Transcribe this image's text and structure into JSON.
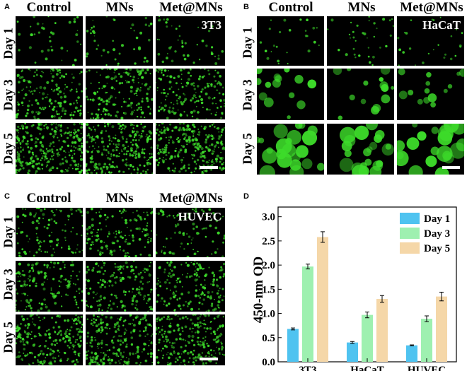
{
  "panels": {
    "A": {
      "letter": "A",
      "columns": [
        "Control",
        "MNs",
        "Met@MNs"
      ],
      "rows": [
        "Day 1",
        "Day 3",
        "Day 5"
      ],
      "cell_label": "3T3"
    },
    "B": {
      "letter": "B",
      "columns": [
        "Control",
        "MNs",
        "Met@MNs"
      ],
      "rows": [
        "Day 1",
        "Day 3",
        "Day 5"
      ],
      "cell_label": "HaCaT"
    },
    "C": {
      "letter": "C",
      "columns": [
        "Control",
        "MNs",
        "Met@MNs"
      ],
      "rows": [
        "Day 1",
        "Day 3",
        "Day 5"
      ],
      "cell_label": "HUVEC"
    },
    "D": {
      "letter": "D"
    }
  },
  "colors": {
    "day1": "#4fc3f0",
    "day3": "#9ef0b0",
    "day5": "#f5d7a8",
    "cells": "#3ddc2a"
  },
  "chart_data": {
    "type": "bar",
    "categories": [
      "3T3",
      "HaCaT",
      "HUVEC"
    ],
    "series": [
      {
        "name": "Day 1",
        "values": [
          0.68,
          0.4,
          0.34
        ],
        "errors": [
          0.02,
          0.02,
          0.01
        ]
      },
      {
        "name": "Day 3",
        "values": [
          1.97,
          0.97,
          0.89
        ],
        "errors": [
          0.05,
          0.06,
          0.06
        ]
      },
      {
        "name": "Day 5",
        "values": [
          2.58,
          1.3,
          1.35
        ],
        "errors": [
          0.11,
          0.07,
          0.09
        ]
      }
    ],
    "ylabel": "450-nm OD",
    "xlabel": "",
    "title": "",
    "ylim": [
      0,
      3.2
    ],
    "yticks": [
      "0.0",
      "0.5",
      "1.0",
      "1.5",
      "2.0",
      "2.5",
      "3.0"
    ],
    "legend": "top-right",
    "grid": false
  }
}
